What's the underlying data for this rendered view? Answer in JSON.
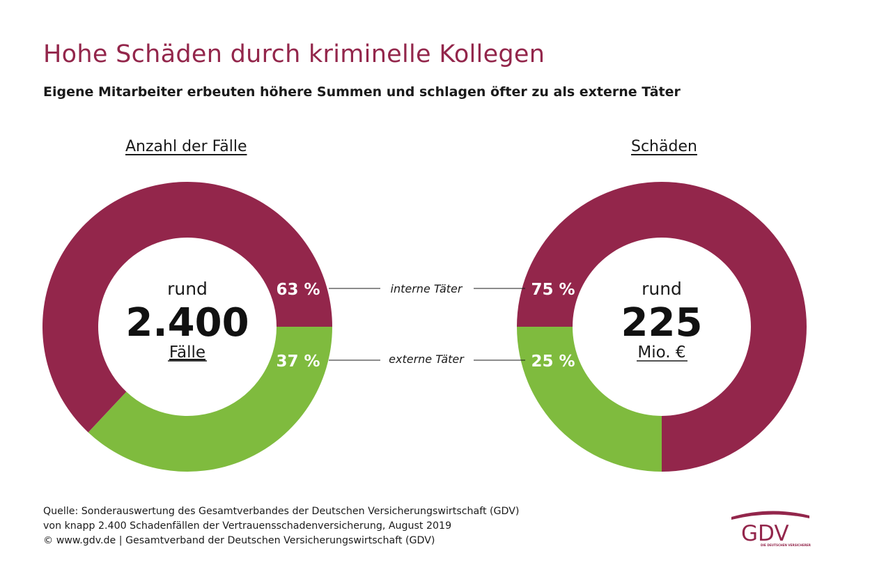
{
  "title": "Hohe Schäden durch kriminelle Kollegen",
  "subtitle": "Eigene Mitarbeiter erbeuten höhere Summen und schlagen öfter zu als externe Täter",
  "colors": {
    "internal": "#93264b",
    "external": "#7fbb3e",
    "title": "#93264b"
  },
  "legend": {
    "internal": "interne Täter",
    "external": "externe Täter"
  },
  "chart_data": [
    {
      "type": "pie",
      "title": "Anzahl der Fälle",
      "categories": [
        "interne Täter",
        "externe Täter"
      ],
      "values": [
        63,
        37
      ],
      "labels": [
        "63 %",
        "37 %"
      ],
      "center": {
        "top": "rund",
        "value": "2.400",
        "unit": "Fälle"
      }
    },
    {
      "type": "pie",
      "title": "Schäden",
      "categories": [
        "interne Täter",
        "externe Täter"
      ],
      "values": [
        75,
        25
      ],
      "labels": [
        "75 %",
        "25 %"
      ],
      "center": {
        "top": "rund",
        "value": "225",
        "unit": "Mio. €"
      }
    }
  ],
  "footer": {
    "line1": "Quelle: Sonderauswertung des Gesamtverbandes der Deutschen Versicherungswirtschaft (GDV)",
    "line2": "von knapp 2.400 Schadenfällen der Vertrauensschadenversicherung, August 2019",
    "line3": "© www.gdv.de | Gesamtverband der Deutschen Versicherungswirtschaft (GDV)"
  },
  "logo": {
    "text": "GDV",
    "tagline": "DIE DEUTSCHEN VERSICHERER"
  }
}
